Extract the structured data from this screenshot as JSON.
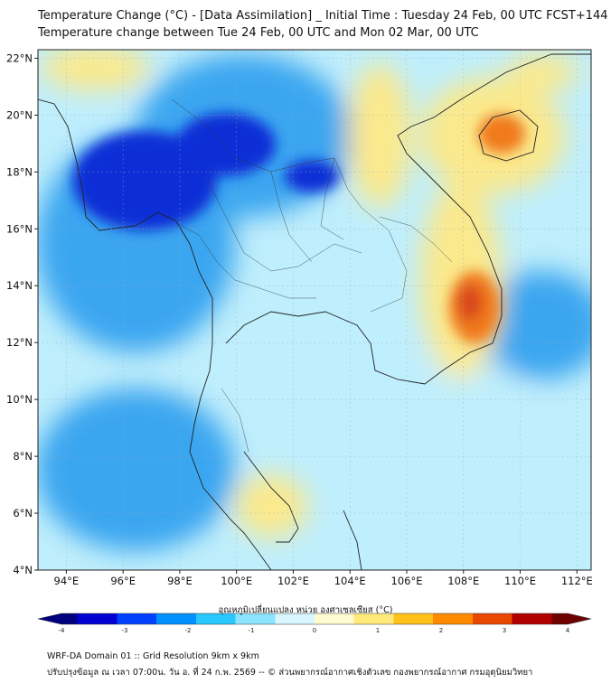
{
  "title_line1": "Temperature Change (°C) - [Data Assimilation] _ Initial Time : Tuesday 24 Feb, 00 UTC FCST+144",
  "title_line2": "Temperature change between Tue 24 Feb, 00 UTC and Mon 02 Mar, 00 UTC",
  "map": {
    "lat_labels": [
      "22°N",
      "20°N",
      "18°N",
      "16°N",
      "14°N",
      "12°N",
      "10°N",
      "8°N",
      "6°N",
      "4°N"
    ],
    "lon_labels": [
      "94°E",
      "96°E",
      "98°E",
      "100°E",
      "102°E",
      "104°E",
      "106°E",
      "108°E",
      "110°E",
      "112°E"
    ],
    "lat_range": [
      4,
      22.3
    ],
    "lon_range": [
      93,
      112.5
    ],
    "grid": true,
    "field_colors": {
      "strong_cool": "#0a2fd6",
      "cool": "#3aa6f0",
      "neutral": "#bfeefc",
      "warm": "#fbe98c",
      "hot": "#f07a1a",
      "very_hot": "#d9461b"
    }
  },
  "colorbar": {
    "title": "อุณหภูมิเปลี่ยนแปลง หน่วย องศาเซลเซียส (°C)",
    "ticks": [
      "-4",
      "-3",
      "-2",
      "-1",
      "0",
      "1",
      "2",
      "3",
      "4"
    ],
    "range": [
      -4,
      4
    ],
    "colors": [
      "#00007f",
      "#0000d0",
      "#0040ff",
      "#0090ff",
      "#28c8ff",
      "#8ae4ff",
      "#d8f6ff",
      "#fffbd0",
      "#ffe97a",
      "#ffc21a",
      "#ff8a00",
      "#e84800",
      "#b00000",
      "#6e0000"
    ]
  },
  "footer_line1": "WRF-DA Domain 01 :: Grid Resolution 9km x 9km",
  "footer_line2": "ปรับปรุงข้อมูล ณ เวลา 07:00น. วัน อ. ที่ 24 ก.พ. 2569 -- © ส่วนพยากรณ์อากาศเชิงตัวเลข กองพยากรณ์อากาศ กรมอุตุนิยมวิทยา"
}
